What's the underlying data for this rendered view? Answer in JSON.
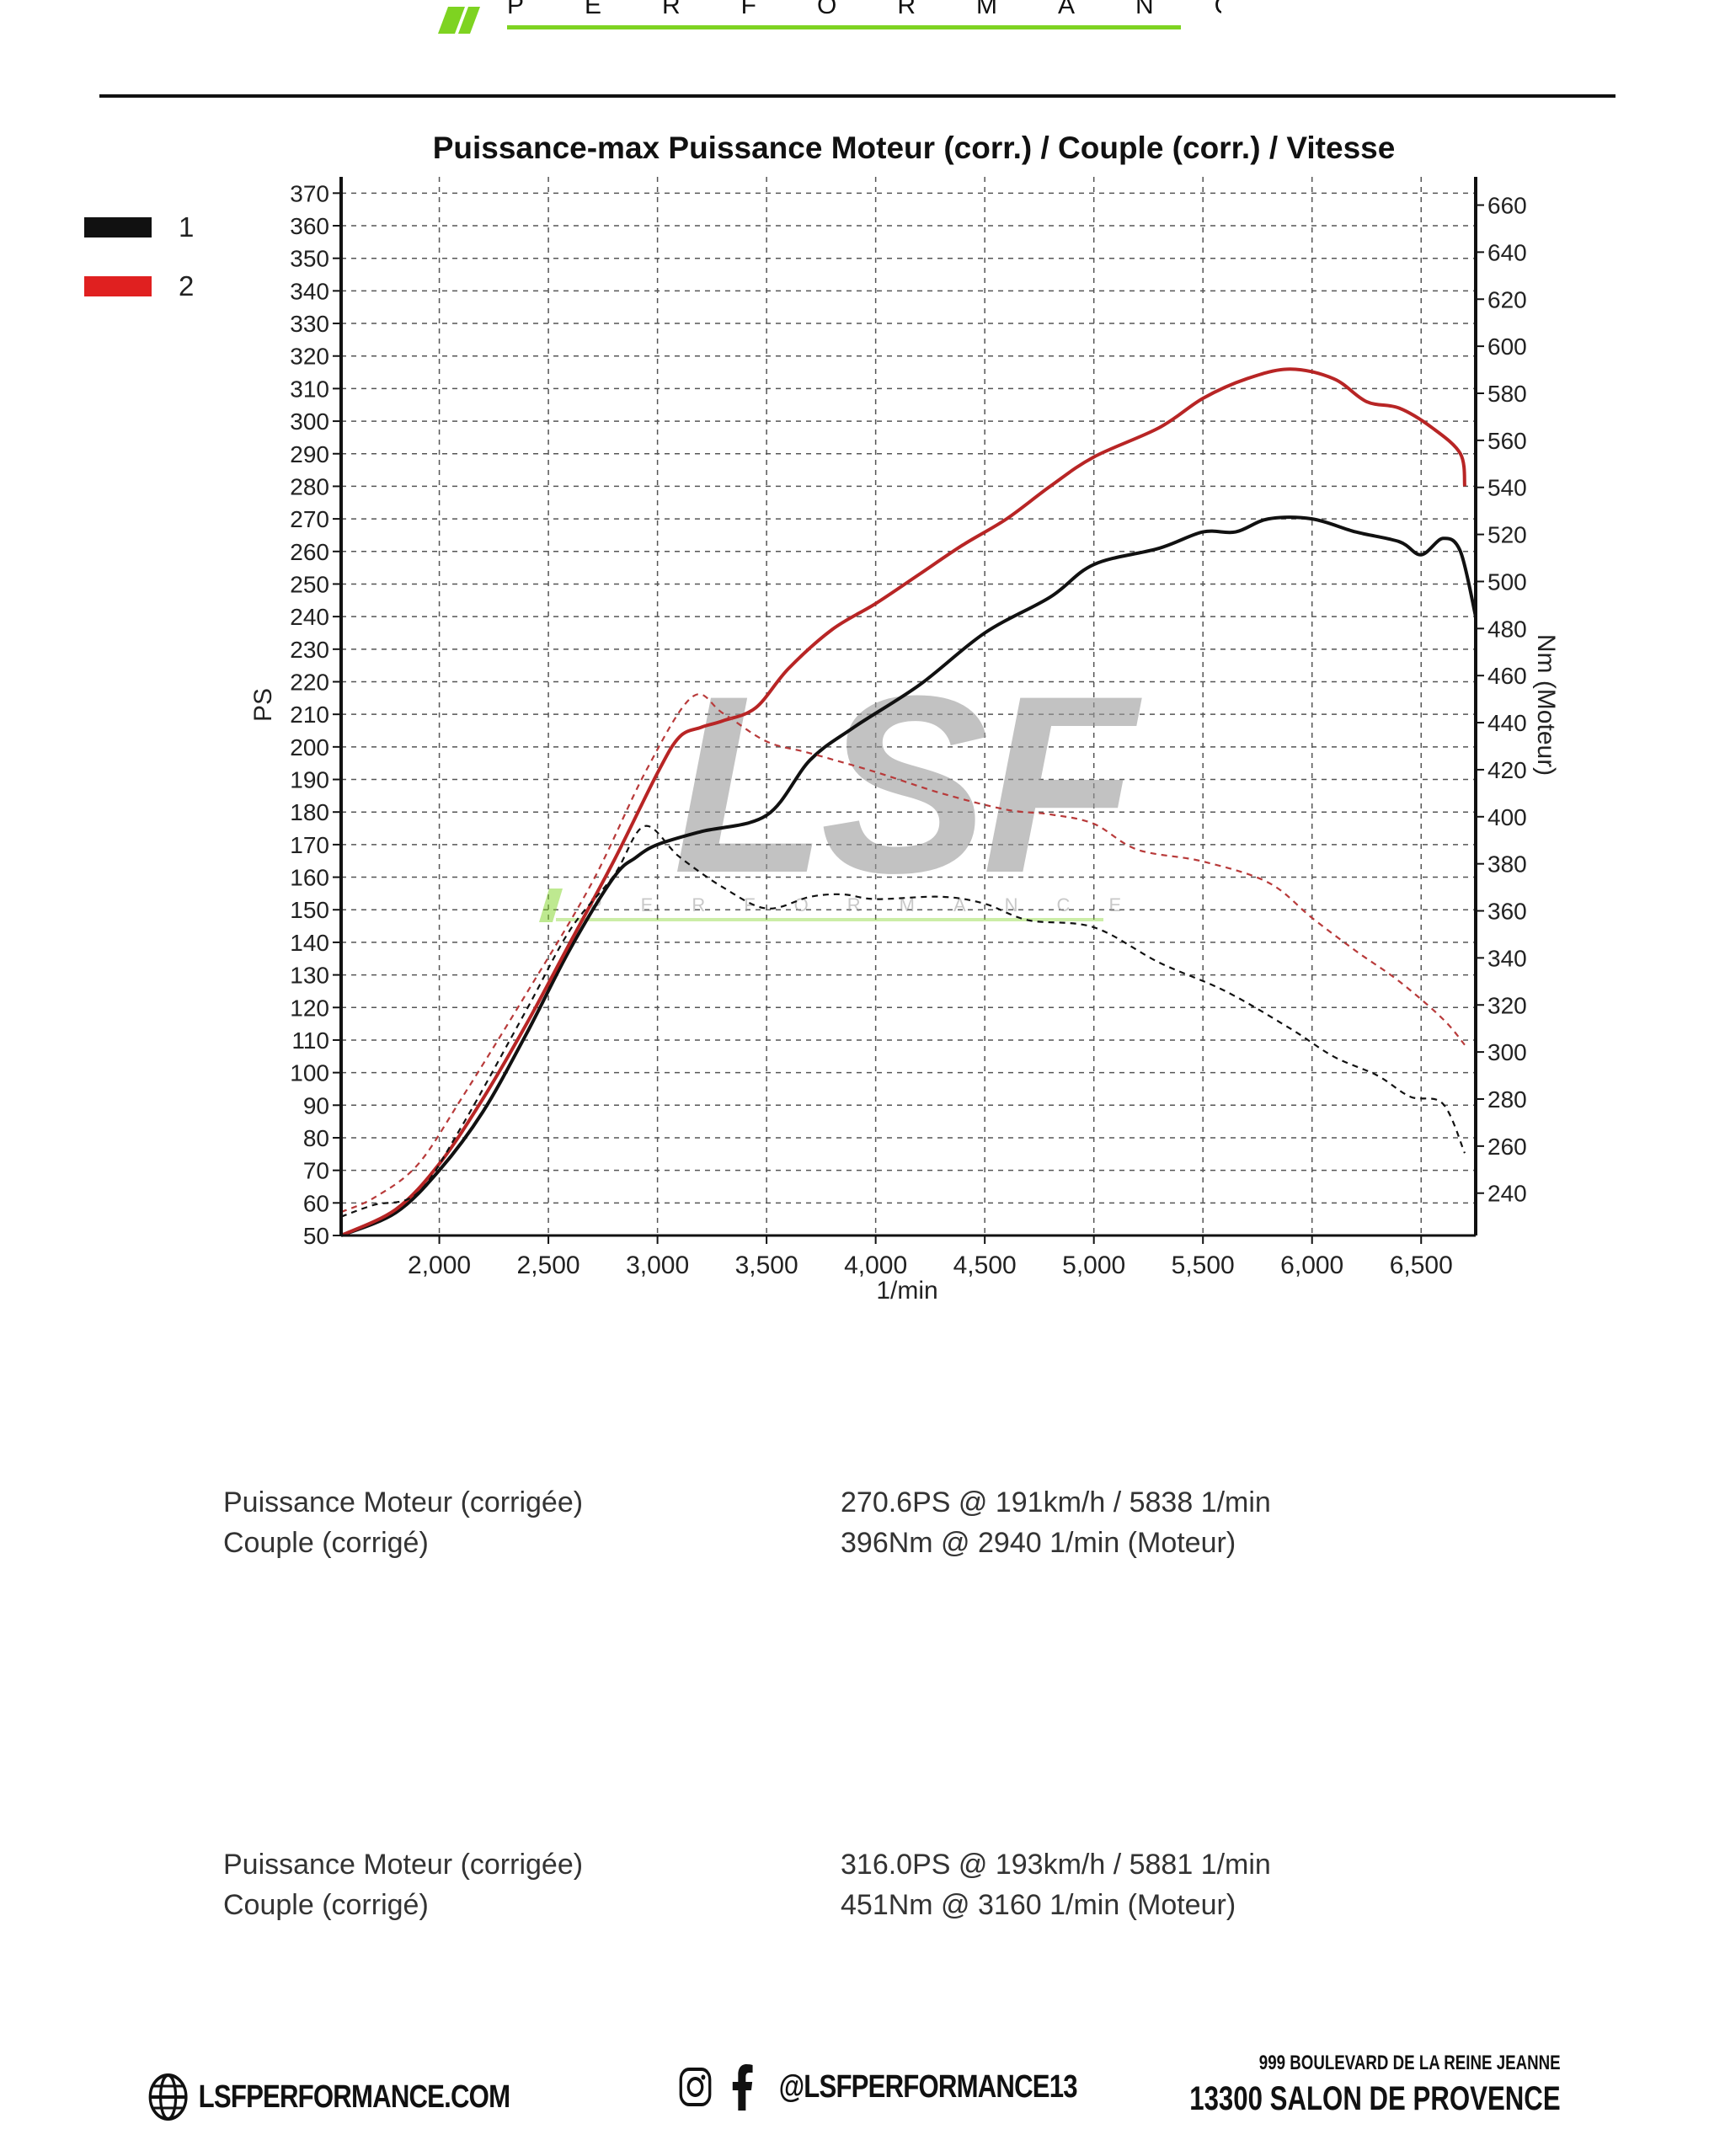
{
  "header": {
    "logo_text": "PERFORMANCE"
  },
  "legend": [
    {
      "label": "1",
      "color": "#111111"
    },
    {
      "label": "2",
      "color": "#e02020"
    }
  ],
  "chart_data": {
    "type": "line",
    "title": "Puissance-max Puissance Moteur (corr.) / Couple (corr.) / Vitesse",
    "xlabel": "1/min",
    "ylabel_left": "PS",
    "ylabel_right": "Nm (Moteur)",
    "xlim": [
      1550,
      6750
    ],
    "ylim_left": [
      50,
      375
    ],
    "ylim_right": [
      222,
      672
    ],
    "x_ticks": [
      2000,
      2500,
      3000,
      3500,
      4000,
      4500,
      5000,
      5500,
      6000,
      6500
    ],
    "x_tick_labels": [
      "2,000",
      "2,500",
      "3,000",
      "3,500",
      "4,000",
      "4,500",
      "5,000",
      "5,500",
      "6,000",
      "6,500"
    ],
    "y_left_ticks": [
      50,
      60,
      70,
      80,
      90,
      100,
      110,
      120,
      130,
      140,
      150,
      160,
      170,
      180,
      190,
      200,
      210,
      220,
      230,
      240,
      250,
      260,
      270,
      280,
      290,
      300,
      310,
      320,
      330,
      340,
      350,
      360,
      370
    ],
    "y_right_ticks": [
      240,
      260,
      280,
      300,
      320,
      340,
      360,
      380,
      400,
      420,
      440,
      460,
      480,
      500,
      520,
      540,
      560,
      580,
      600,
      620,
      640,
      660
    ],
    "grid": true,
    "series": [
      {
        "name": "1",
        "quantity": "PS",
        "axis": "left",
        "style": "solid",
        "color": "#111111",
        "x": [
          1550,
          1800,
          2000,
          2200,
          2400,
          2600,
          2800,
          2900,
          3000,
          3200,
          3500,
          3700,
          3900,
          4200,
          4500,
          4800,
          5000,
          5300,
          5500,
          5650,
          5800,
          6000,
          6200,
          6400,
          6500,
          6600,
          6680,
          6750
        ],
        "y": [
          50,
          57,
          70,
          88,
          112,
          138,
          160,
          166,
          170,
          174,
          179,
          196,
          206,
          219,
          235,
          246,
          256,
          261,
          266,
          266,
          270,
          270,
          266,
          263,
          259,
          264,
          260,
          240
        ]
      },
      {
        "name": "2",
        "quantity": "PS",
        "axis": "left",
        "style": "solid",
        "color": "#b82525",
        "x": [
          1550,
          1800,
          2000,
          2200,
          2400,
          2600,
          2800,
          3000,
          3100,
          3200,
          3300,
          3450,
          3600,
          3800,
          4000,
          4200,
          4400,
          4600,
          4800,
          5000,
          5300,
          5500,
          5700,
          5900,
          6100,
          6250,
          6400,
          6550,
          6680,
          6700
        ],
        "y": [
          50,
          58,
          72,
          92,
          115,
          140,
          165,
          192,
          203,
          206,
          208,
          212,
          224,
          236,
          244,
          253,
          262,
          270,
          280,
          289,
          298,
          307,
          313,
          316,
          313,
          306,
          304,
          298,
          290,
          280
        ]
      },
      {
        "name": "1",
        "quantity": "Nm (Moteur)",
        "axis": "right",
        "style": "dashed",
        "color": "#111111",
        "x": [
          1550,
          1700,
          1900,
          2100,
          2400,
          2600,
          2800,
          2940,
          3100,
          3300,
          3500,
          3700,
          3850,
          4000,
          4300,
          4500,
          4700,
          5000,
          5300,
          5600,
          5900,
          6100,
          6300,
          6450,
          6600,
          6700
        ],
        "y": [
          230,
          235,
          240,
          268,
          318,
          352,
          375,
          396,
          383,
          370,
          361,
          366,
          367,
          365,
          366,
          363,
          356,
          353,
          338,
          326,
          310,
          298,
          290,
          281,
          278,
          257
        ]
      },
      {
        "name": "2",
        "quantity": "Nm (Moteur)",
        "axis": "right",
        "style": "dashed",
        "color": "#b83a3a",
        "x": [
          1550,
          1700,
          1900,
          2100,
          2400,
          2700,
          2950,
          3160,
          3300,
          3500,
          3700,
          4000,
          4300,
          4600,
          4800,
          5000,
          5200,
          5500,
          5800,
          6000,
          6200,
          6400,
          6600,
          6700
        ],
        "y": [
          232,
          238,
          252,
          280,
          325,
          372,
          420,
          451,
          444,
          432,
          427,
          419,
          410,
          403,
          401,
          397,
          386,
          381,
          372,
          357,
          343,
          330,
          314,
          303
        ]
      }
    ]
  },
  "watermark": {
    "text": "LSF",
    "subtext": "PERFORMANCE"
  },
  "stats": [
    {
      "power_label": "Puissance Moteur (corrigée)",
      "power_value": "270.6PS @ 191km/h / 5838 1/min",
      "torque_label": "Couple (corrigé)",
      "torque_value": "396Nm @ 2940 1/min (Moteur)"
    },
    {
      "power_label": "Puissance Moteur (corrigée)",
      "power_value": "316.0PS @ 193km/h / 5881 1/min",
      "torque_label": "Couple (corrigé)",
      "torque_value": "451Nm @ 3160 1/min (Moteur)"
    }
  ],
  "footer": {
    "website": "LSFPERFORMANCE.COM",
    "social_handle": "@LSFPERFORMANCE13",
    "address_line1": "999 BOULEVARD DE LA REINE JEANNE",
    "address_line2": "13300 SALON DE PROVENCE"
  }
}
